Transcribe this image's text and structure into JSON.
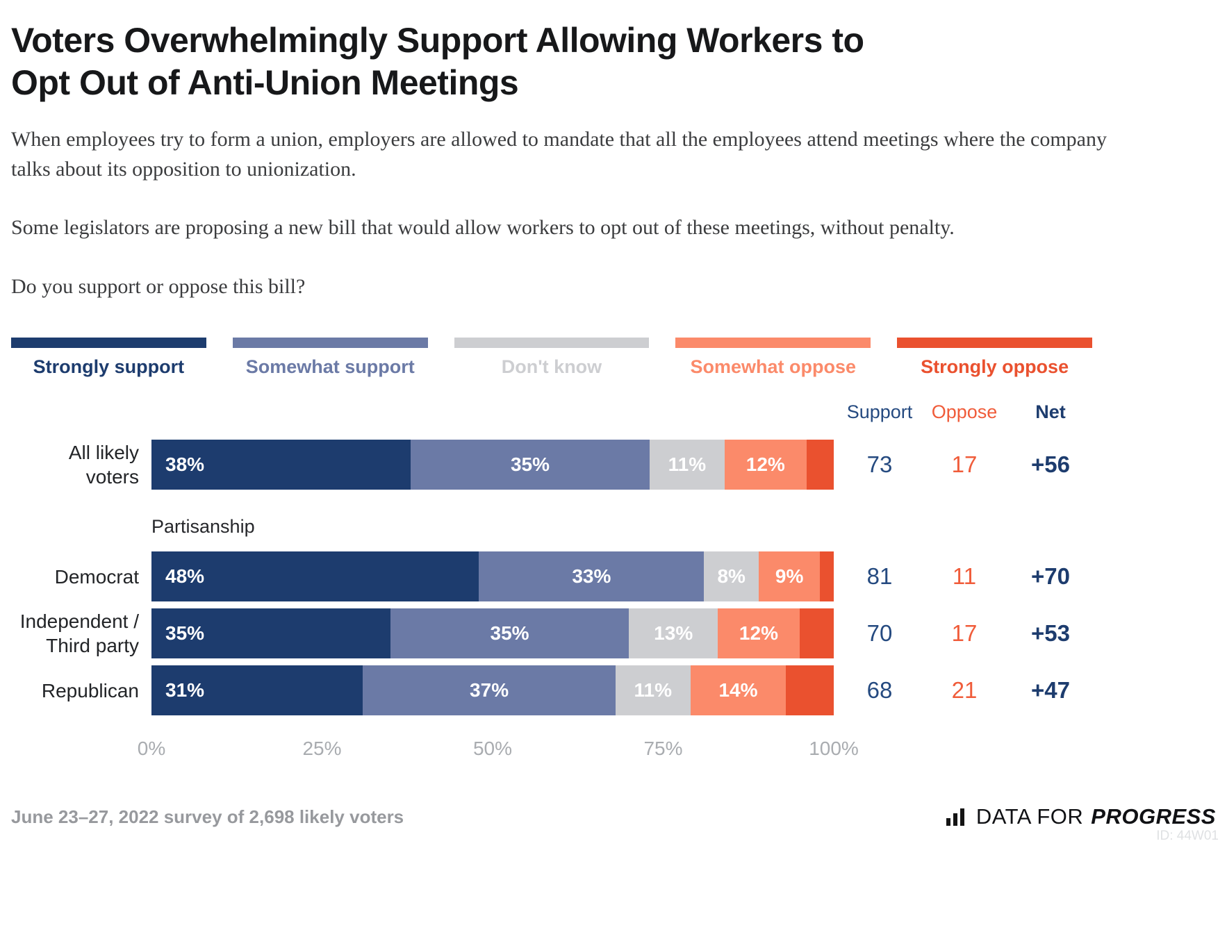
{
  "title_lines": [
    "Voters Overwhelmingly Support Allowing Workers to",
    "Opt Out of Anti-Union Meetings"
  ],
  "paragraphs": [
    "When employees try to form a union, employers are allowed to mandate that all the employees attend meetings where the company talks about its opposition to unionization.",
    "Some legislators are proposing a new bill that would allow workers to opt out of these meetings, without penalty.",
    "Do you support or oppose this bill?"
  ],
  "legend": [
    {
      "label": "Strongly support",
      "color": "#1d3c6e"
    },
    {
      "label": "Somewhat support",
      "color": "#6b7aa6"
    },
    {
      "label": "Don't know",
      "color": "#cdced1"
    },
    {
      "label": "Somewhat oppose",
      "color": "#fb8a6a"
    },
    {
      "label": "Strongly oppose",
      "color": "#ea512f"
    }
  ],
  "table_headers": {
    "support": "Support",
    "oppose": "Oppose",
    "net": "Net"
  },
  "section_label": "Partisanship",
  "chart_data": {
    "type": "bar",
    "stacked": true,
    "orientation": "horizontal",
    "unit": "percent",
    "title": "Voters Overwhelmingly Support Allowing Workers to Opt Out of Anti-Union Meetings",
    "categories": [
      "All likely voters",
      "Democrat",
      "Independent / Third party",
      "Republican"
    ],
    "series": [
      {
        "name": "Strongly support",
        "values": [
          38,
          48,
          35,
          31
        ],
        "labeled": true
      },
      {
        "name": "Somewhat support",
        "values": [
          35,
          33,
          35,
          37
        ],
        "labeled": true
      },
      {
        "name": "Don't know",
        "values": [
          11,
          8,
          13,
          11
        ],
        "labeled": true
      },
      {
        "name": "Somewhat oppose",
        "values": [
          12,
          9,
          12,
          14
        ],
        "labeled": true
      },
      {
        "name": "Strongly oppose",
        "values": [
          4,
          2,
          5,
          7
        ],
        "labeled": false
      }
    ],
    "support": [
      73,
      81,
      70,
      68
    ],
    "oppose": [
      17,
      11,
      17,
      21
    ],
    "net": [
      "+56",
      "+70",
      "+53",
      "+47"
    ],
    "x_ticks": [
      "0%",
      "25%",
      "50%",
      "75%",
      "100%"
    ],
    "x_tick_values": [
      0,
      25,
      50,
      75,
      100
    ],
    "xlim": [
      0,
      100
    ],
    "legend_position": "top",
    "grid": false
  },
  "colors": {
    "strongly_support": "#1d3c6e",
    "somewhat_support": "#6b7aa6",
    "dont_know": "#cdced1",
    "somewhat_oppose": "#fb8a6a",
    "strongly_oppose": "#ea512f",
    "support_text": "#254a80",
    "oppose_text": "#f05c3a",
    "net_text": "#1d3c6e",
    "axis_text": "#a9acb0",
    "footer_text": "#97999d"
  },
  "footer": {
    "note": "June 23–27, 2022 survey of 2,698 likely voters",
    "brand": {
      "prefix": "DATA FOR",
      "suffix": "PROGRESS"
    },
    "watermark": "ID: 44W01"
  }
}
